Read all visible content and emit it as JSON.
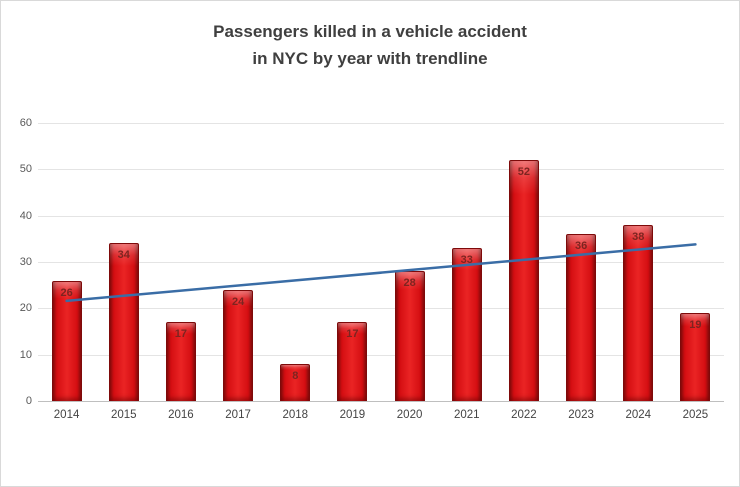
{
  "chart_data": {
    "type": "bar",
    "title_line1": "Passengers killed in a vehicle accident",
    "title_line2": "in NYC by year with trendline",
    "categories": [
      "2014",
      "2015",
      "2016",
      "2017",
      "2018",
      "2019",
      "2020",
      "2021",
      "2022",
      "2023",
      "2024",
      "2025"
    ],
    "values": [
      26,
      34,
      17,
      24,
      8,
      17,
      28,
      33,
      52,
      36,
      38,
      19
    ],
    "data_labels_shown": true,
    "xlabel": "",
    "ylabel": "",
    "ylim": [
      0,
      60
    ],
    "yticks": [
      0,
      10,
      20,
      30,
      40,
      50,
      60
    ],
    "grid": true,
    "legend_position": "none",
    "trendline": {
      "type": "linear",
      "start_value": 21.6,
      "end_value": 33.8,
      "color": "#3a6da6",
      "width": 2.5
    },
    "colors": {
      "bar_fill": "#de0a10",
      "bar_edge": "#7e0a0a",
      "bar_label": "#7d2420",
      "gridline": "#e4e4e4",
      "axis_line": "#bfbfbf",
      "axis_text": "#595959",
      "title_text": "#3f3f3f",
      "background": "#ffffff",
      "border": "#d9d9d9"
    }
  }
}
